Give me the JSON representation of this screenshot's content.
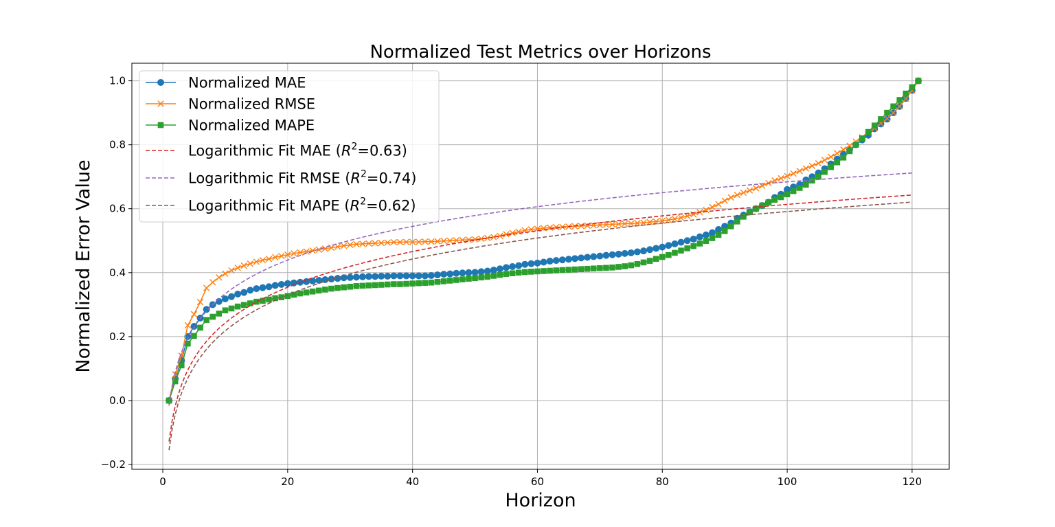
{
  "chart_data": {
    "type": "line",
    "title": "Normalized Test Metrics over Horizons",
    "xlabel": "Horizon",
    "ylabel": "Normalized Error Value",
    "xlim": [
      -4.95,
      125.95
    ],
    "ylim": [
      -0.215,
      1.055
    ],
    "xticks": [
      0,
      20,
      40,
      60,
      80,
      100,
      120
    ],
    "yticks": [
      -0.2,
      0.0,
      0.2,
      0.4,
      0.6,
      0.8,
      1.0
    ],
    "grid": true,
    "legend_position": "upper-left",
    "series": [
      {
        "name": "Normalized MAE",
        "color": "#1f77b4",
        "marker": "circle",
        "line": "solid",
        "x_start": 1,
        "values": [
          0.0,
          0.068,
          0.125,
          0.2,
          0.232,
          0.258,
          0.285,
          0.3,
          0.31,
          0.318,
          0.325,
          0.333,
          0.338,
          0.345,
          0.35,
          0.353,
          0.356,
          0.36,
          0.363,
          0.366,
          0.368,
          0.37,
          0.372,
          0.374,
          0.376,
          0.378,
          0.38,
          0.382,
          0.384,
          0.385,
          0.386,
          0.387,
          0.388,
          0.388,
          0.389,
          0.389,
          0.39,
          0.39,
          0.39,
          0.39,
          0.39,
          0.39,
          0.391,
          0.393,
          0.395,
          0.396,
          0.398,
          0.399,
          0.4,
          0.401,
          0.403,
          0.405,
          0.408,
          0.412,
          0.416,
          0.419,
          0.422,
          0.426,
          0.428,
          0.43,
          0.433,
          0.436,
          0.438,
          0.44,
          0.442,
          0.444,
          0.446,
          0.448,
          0.45,
          0.452,
          0.454,
          0.456,
          0.458,
          0.46,
          0.462,
          0.465,
          0.468,
          0.472,
          0.476,
          0.48,
          0.485,
          0.49,
          0.495,
          0.5,
          0.505,
          0.512,
          0.518,
          0.525,
          0.535,
          0.545,
          0.555,
          0.57,
          0.58,
          0.59,
          0.6,
          0.61,
          0.62,
          0.635,
          0.645,
          0.66,
          0.668,
          0.675,
          0.69,
          0.7,
          0.712,
          0.725,
          0.74,
          0.755,
          0.77,
          0.785,
          0.8,
          0.815,
          0.83,
          0.85,
          0.865,
          0.88,
          0.9,
          0.92,
          0.945,
          0.97,
          1.0
        ]
      },
      {
        "name": "Normalized RMSE",
        "color": "#ff7f0e",
        "marker": "x",
        "line": "solid",
        "x_start": 1,
        "values": [
          0.0,
          0.082,
          0.14,
          0.235,
          0.27,
          0.308,
          0.352,
          0.37,
          0.385,
          0.397,
          0.407,
          0.415,
          0.422,
          0.428,
          0.434,
          0.439,
          0.443,
          0.448,
          0.452,
          0.456,
          0.46,
          0.463,
          0.466,
          0.469,
          0.472,
          0.475,
          0.478,
          0.481,
          0.484,
          0.487,
          0.489,
          0.49,
          0.491,
          0.492,
          0.493,
          0.494,
          0.495,
          0.495,
          0.496,
          0.496,
          0.496,
          0.497,
          0.497,
          0.498,
          0.499,
          0.5,
          0.501,
          0.502,
          0.503,
          0.504,
          0.506,
          0.508,
          0.511,
          0.515,
          0.52,
          0.524,
          0.528,
          0.532,
          0.535,
          0.537,
          0.539,
          0.541,
          0.542,
          0.543,
          0.544,
          0.545,
          0.546,
          0.547,
          0.548,
          0.549,
          0.55,
          0.551,
          0.552,
          0.553,
          0.554,
          0.555,
          0.556,
          0.558,
          0.56,
          0.562,
          0.565,
          0.568,
          0.572,
          0.577,
          0.582,
          0.589,
          0.596,
          0.605,
          0.614,
          0.625,
          0.635,
          0.643,
          0.65,
          0.657,
          0.664,
          0.672,
          0.68,
          0.688,
          0.695,
          0.702,
          0.71,
          0.718,
          0.726,
          0.734,
          0.742,
          0.752,
          0.762,
          0.773,
          0.785,
          0.797,
          0.81,
          0.823,
          0.838,
          0.852,
          0.867,
          0.882,
          0.9,
          0.92,
          0.944,
          0.97,
          1.0
        ]
      },
      {
        "name": "Normalized MAPE",
        "color": "#2ca02c",
        "marker": "square",
        "line": "solid",
        "x_start": 1,
        "values": [
          0.0,
          0.06,
          0.11,
          0.178,
          0.202,
          0.228,
          0.252,
          0.262,
          0.272,
          0.282,
          0.288,
          0.294,
          0.299,
          0.304,
          0.309,
          0.312,
          0.316,
          0.32,
          0.323,
          0.327,
          0.331,
          0.335,
          0.338,
          0.341,
          0.344,
          0.347,
          0.35,
          0.352,
          0.354,
          0.356,
          0.358,
          0.359,
          0.36,
          0.361,
          0.362,
          0.363,
          0.364,
          0.364,
          0.365,
          0.366,
          0.367,
          0.368,
          0.369,
          0.371,
          0.373,
          0.375,
          0.377,
          0.379,
          0.381,
          0.383,
          0.385,
          0.387,
          0.39,
          0.393,
          0.396,
          0.398,
          0.4,
          0.402,
          0.403,
          0.404,
          0.405,
          0.406,
          0.407,
          0.408,
          0.409,
          0.41,
          0.411,
          0.412,
          0.413,
          0.414,
          0.415,
          0.416,
          0.418,
          0.42,
          0.423,
          0.427,
          0.432,
          0.437,
          0.443,
          0.449,
          0.455,
          0.462,
          0.469,
          0.476,
          0.483,
          0.491,
          0.499,
          0.508,
          0.518,
          0.53,
          0.545,
          0.56,
          0.575,
          0.59,
          0.6,
          0.61,
          0.62,
          0.628,
          0.636,
          0.645,
          0.655,
          0.665,
          0.675,
          0.688,
          0.7,
          0.715,
          0.73,
          0.745,
          0.76,
          0.78,
          0.8,
          0.82,
          0.84,
          0.86,
          0.88,
          0.9,
          0.92,
          0.94,
          0.96,
          0.98,
          1.0
        ]
      },
      {
        "name": "Logarithmic Fit MAE",
        "r2": "0.63",
        "color": "#d62728",
        "line": "dashed",
        "fit": "log",
        "a": -0.128,
        "b": 0.161
      },
      {
        "name": "Logarithmic Fit RMSE",
        "r2": "0.74",
        "color": "#9467bd",
        "line": "dashed",
        "fit": "log",
        "a": -0.016,
        "b": 0.152
      },
      {
        "name": "Logarithmic Fit MAPE",
        "r2": "0.62",
        "color": "#8c564b",
        "line": "dashed",
        "fit": "log",
        "a": -0.155,
        "b": 0.162
      }
    ]
  }
}
